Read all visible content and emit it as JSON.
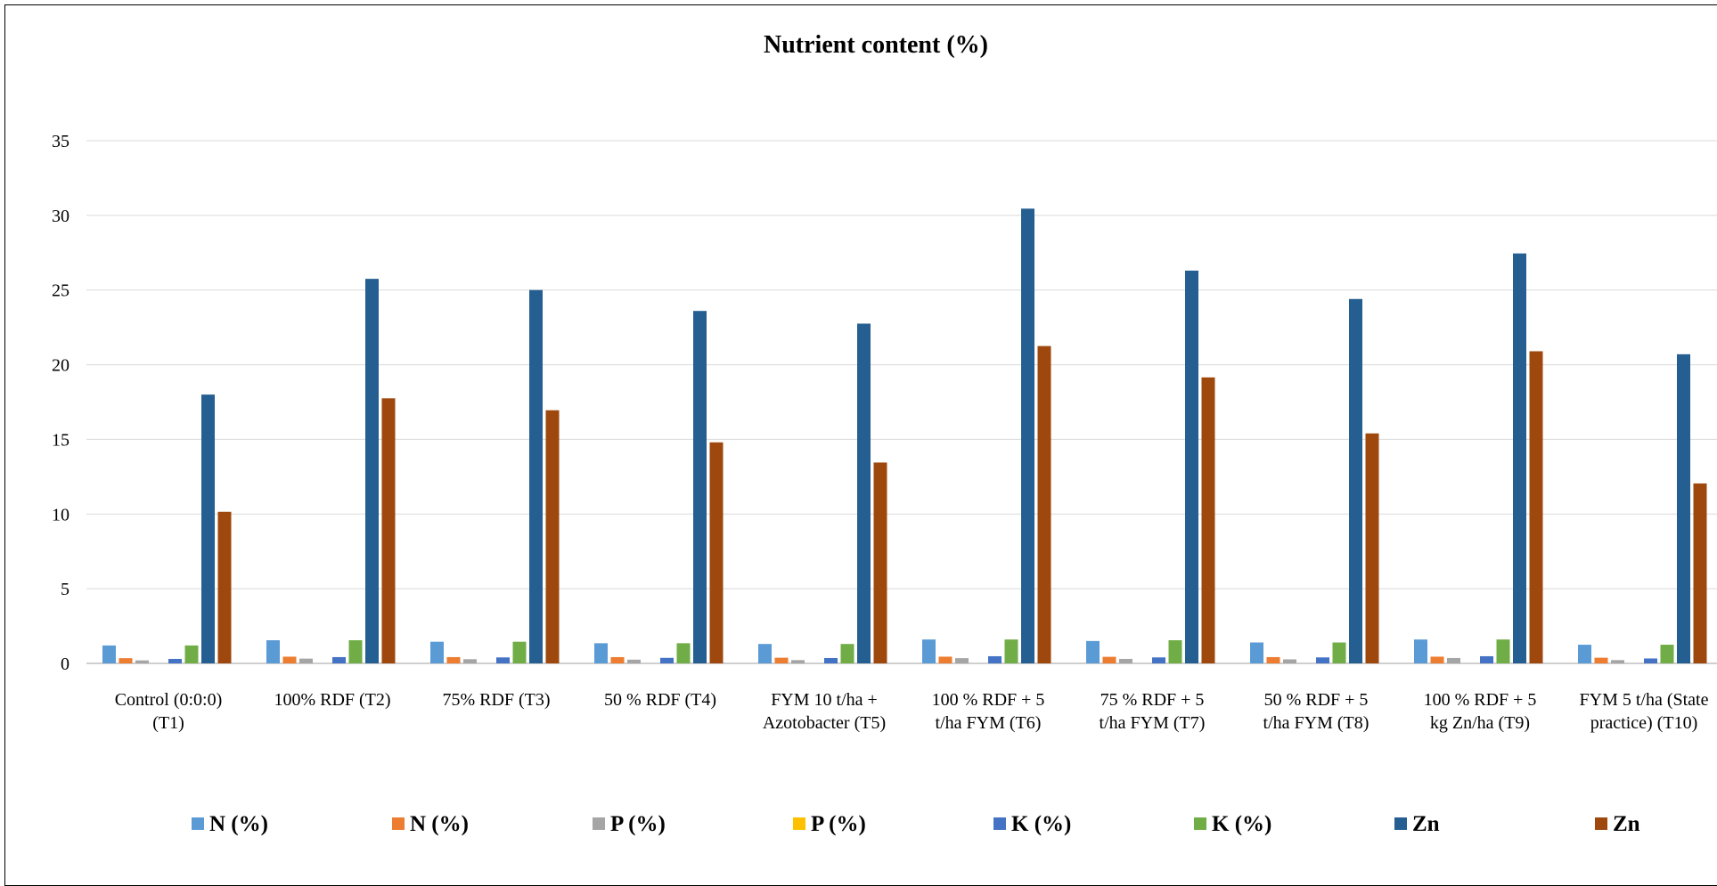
{
  "chart_data": {
    "type": "bar",
    "title": "Nutrient content (%)",
    "xlabel": "",
    "ylabel": "",
    "ylim": [
      0,
      35
    ],
    "yticks": [
      0,
      5,
      10,
      15,
      20,
      25,
      30,
      35
    ],
    "grid": true,
    "legend_position": "bottom",
    "categories": [
      [
        "Control (0:0:0)",
        "(T1)"
      ],
      [
        "100% RDF (T2)"
      ],
      [
        "75% RDF (T3)"
      ],
      [
        "50 % RDF (T4)"
      ],
      [
        "FYM 10 t/ha +",
        "Azotobacter (T5)"
      ],
      [
        "100 % RDF + 5",
        "t/ha FYM (T6)"
      ],
      [
        "75 % RDF + 5",
        "t/ha FYM (T7)"
      ],
      [
        "50 % RDF + 5",
        "t/ha FYM (T8)"
      ],
      [
        "100 % RDF + 5",
        "kg Zn/ha (T9)"
      ],
      [
        "FYM 5 t/ha (State",
        "practice) (T10)"
      ]
    ],
    "series": [
      {
        "name": "N (%)",
        "color": "#5B9BD5",
        "values": [
          1.2,
          1.55,
          1.45,
          1.35,
          1.3,
          1.6,
          1.5,
          1.4,
          1.6,
          1.25
        ]
      },
      {
        "name": "N (%)",
        "color": "#ED7D31",
        "values": [
          0.35,
          0.45,
          0.42,
          0.42,
          0.38,
          0.45,
          0.44,
          0.42,
          0.45,
          0.38
        ]
      },
      {
        "name": "P (%)",
        "color": "#A5A5A5",
        "values": [
          0.2,
          0.32,
          0.28,
          0.25,
          0.22,
          0.35,
          0.3,
          0.27,
          0.36,
          0.22
        ]
      },
      {
        "name": "P (%)",
        "color": "#FFC000",
        "values": [
          0,
          0,
          0,
          0,
          0,
          0,
          0,
          0,
          0,
          0
        ]
      },
      {
        "name": "K (%)",
        "color": "#4472C4",
        "values": [
          0.3,
          0.42,
          0.4,
          0.37,
          0.36,
          0.48,
          0.4,
          0.4,
          0.48,
          0.33
        ]
      },
      {
        "name": "K (%)",
        "color": "#70AD47",
        "values": [
          1.2,
          1.55,
          1.45,
          1.35,
          1.3,
          1.6,
          1.55,
          1.4,
          1.6,
          1.25
        ]
      },
      {
        "name": "Zn",
        "color": "#255E91",
        "values": [
          18.0,
          25.75,
          25.0,
          23.6,
          22.75,
          30.45,
          26.3,
          24.4,
          27.45,
          20.7
        ]
      },
      {
        "name": "Zn",
        "color": "#9E480E",
        "values": [
          10.15,
          17.75,
          16.95,
          14.8,
          13.45,
          21.25,
          19.15,
          15.4,
          20.9,
          12.05
        ]
      }
    ]
  }
}
